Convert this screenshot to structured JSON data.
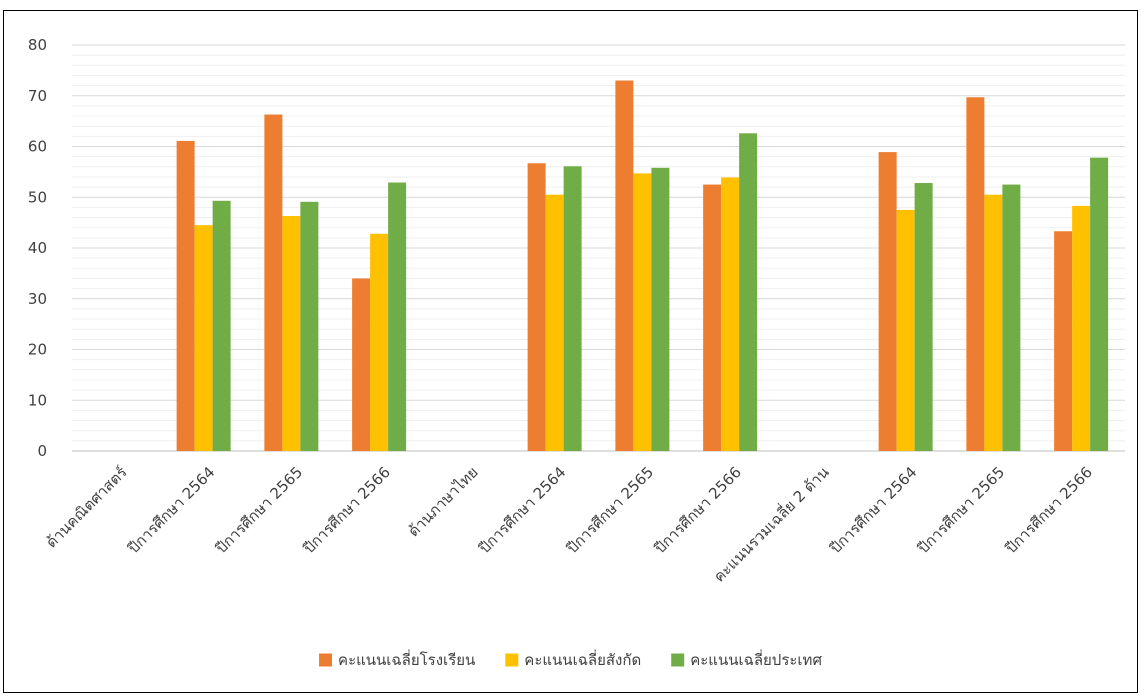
{
  "chart_data": {
    "type": "bar",
    "title": "",
    "xlabel": "",
    "ylabel": "",
    "ylim": [
      0,
      80
    ],
    "yticks": [
      0,
      10,
      20,
      30,
      40,
      50,
      60,
      70,
      80
    ],
    "grid": true,
    "legend_position": "bottom",
    "categories": [
      "ด้านคณิตศาสตร์",
      "ปีการศึกษา 2564",
      "ปีการศึกษา 2565",
      "ปีการศึกษา 2566",
      "ด้านภาษาไทย",
      "ปีการศึกษา 2564",
      "ปีการศึกษา 2565",
      "ปีการศึกษา 2566",
      "คะแนนรวมเฉลี่ย 2 ด้าน",
      "ปีการศึกษา 2564",
      "ปีการศึกษา 2565",
      "ปีการศึกษา 2566"
    ],
    "series": [
      {
        "name": "คะแนนเฉลี่ยโรงเรียน",
        "color": "#ED7D31",
        "values": [
          null,
          61.1,
          66.3,
          34.0,
          null,
          56.7,
          73.0,
          52.5,
          null,
          58.9,
          69.7,
          43.3
        ]
      },
      {
        "name": "คะแนนเฉลี่ยสังกัด",
        "color": "#FFC000",
        "values": [
          null,
          44.5,
          46.3,
          42.8,
          null,
          50.5,
          54.7,
          53.9,
          null,
          47.5,
          50.5,
          48.3
        ]
      },
      {
        "name": "คะแนนเฉลี่ยประเทศ",
        "color": "#70AD47",
        "values": [
          null,
          49.3,
          49.1,
          52.9,
          null,
          56.1,
          55.8,
          62.6,
          null,
          52.8,
          52.5,
          57.8
        ]
      }
    ]
  }
}
